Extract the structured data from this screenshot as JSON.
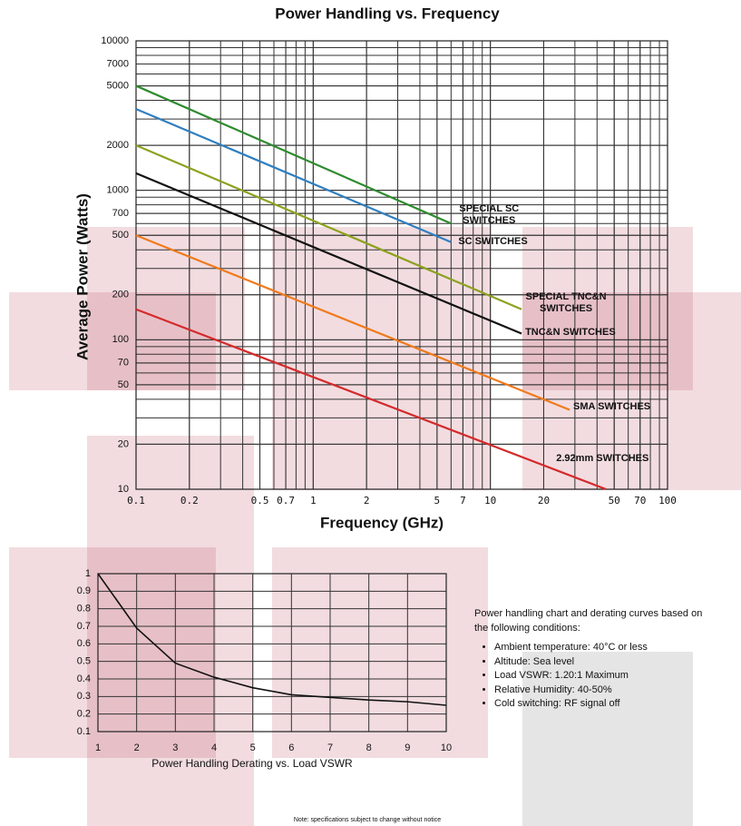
{
  "chart_data": [
    {
      "type": "line",
      "title": "Power Handling vs. Frequency",
      "xlabel": "Frequency (GHz)",
      "ylabel": "Average Power (Watts)",
      "xscale": "log",
      "yscale": "log",
      "grid": true,
      "xlim": [
        0.1,
        100
      ],
      "ylim": [
        10,
        10000
      ],
      "xticks": [
        0.1,
        0.2,
        0.5,
        0.7,
        1,
        2,
        5,
        7,
        10,
        20,
        50,
        70,
        100
      ],
      "yticks": [
        10,
        20,
        50,
        70,
        100,
        200,
        500,
        700,
        1000,
        2000,
        5000,
        7000,
        10000
      ],
      "series": [
        {
          "name": "SPECIAL SC SWITCHES",
          "color": "#2e8b2e",
          "x": [
            0.1,
            6
          ],
          "values": [
            5000,
            600
          ]
        },
        {
          "name": "SC SWITCHES",
          "color": "#2f7fc0",
          "x": [
            0.1,
            6
          ],
          "values": [
            3500,
            450
          ]
        },
        {
          "name": "SPECIAL TNC&N SWITCHES",
          "color": "#8ca21e",
          "x": [
            0.1,
            15
          ],
          "values": [
            2000,
            160
          ]
        },
        {
          "name": "TNC&N SWITCHES",
          "color": "#111111",
          "x": [
            0.1,
            15
          ],
          "values": [
            1300,
            110
          ]
        },
        {
          "name": "SMA SWITCHES",
          "color": "#f07a1a",
          "x": [
            0.1,
            28
          ],
          "values": [
            500,
            34
          ]
        },
        {
          "name": "2.92mm SWITCHES",
          "color": "#d42a2a",
          "x": [
            0.1,
            45
          ],
          "values": [
            160,
            10
          ]
        }
      ]
    },
    {
      "type": "line",
      "title": "Power Handling Derating vs. Load VSWR",
      "grid": true,
      "xlim": [
        1,
        10
      ],
      "ylim": [
        0.1,
        1
      ],
      "xticks": [
        1,
        2,
        3,
        4,
        5,
        6,
        7,
        8,
        9,
        10
      ],
      "yticks": [
        0.1,
        0.2,
        0.3,
        0.4,
        0.5,
        0.6,
        0.7,
        0.8,
        0.9,
        1
      ],
      "series": [
        {
          "color": "#111111",
          "x": [
            1,
            2,
            3,
            4,
            5,
            6,
            7,
            8,
            9,
            10
          ],
          "values": [
            1,
            0.69,
            0.49,
            0.41,
            0.35,
            0.31,
            0.295,
            0.28,
            0.27,
            0.25
          ]
        }
      ]
    }
  ],
  "conditions": {
    "intro": "Power handling chart and derating curves based on the following conditions:",
    "items": [
      "Ambient temperature: 40°C or less",
      "Altitude: Sea level",
      "Load VSWR: 1.20:1 Maximum",
      "Relative Humidity: 40-50%",
      "Cold switching: RF signal off"
    ]
  },
  "footnote": "Note: specifications subject to change without notice"
}
